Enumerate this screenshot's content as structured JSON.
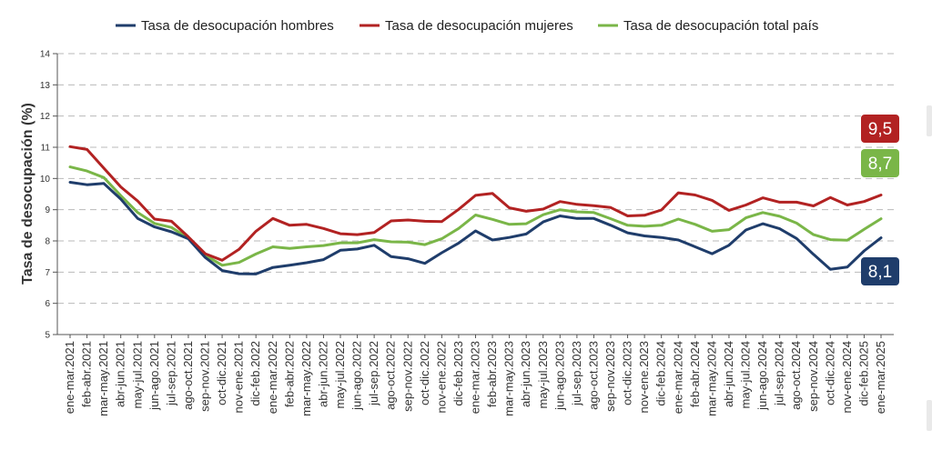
{
  "colors": {
    "hombres": "#1f3d6b",
    "mujeres": "#b22222",
    "total": "#7ab648",
    "grid": "#b9b9b9"
  },
  "chart_data": {
    "type": "line",
    "ylabel": "Tasa de desocupación (%)",
    "ylim": [
      5,
      14
    ],
    "yticks": [
      5,
      6,
      7,
      8,
      9,
      10,
      11,
      12,
      13,
      14
    ],
    "grid": "horizontal-dashed",
    "legend_position": "top",
    "categories": [
      "ene-mar.2021",
      "feb-abr.2021",
      "mar-may.2021",
      "abr-jun.2021",
      "may-jul.2021",
      "jun-ago.2021",
      "jul-sep.2021",
      "ago-oct.2021",
      "sep-nov.2021",
      "oct-dic.2021",
      "nov-ene.2021",
      "dic-feb.2022",
      "ene-mar.2022",
      "feb-abr.2022",
      "mar-may.2022",
      "abr-jun.2022",
      "may-jul.2022",
      "jun-ago.2022",
      "jul-sep.2022",
      "ago-oct.2022",
      "sep-nov.2022",
      "oct-dic.2022",
      "nov-ene.2022",
      "dic-feb.2023",
      "ene-mar.2023",
      "feb-abr.2023",
      "mar-may.2023",
      "abr-jun.2023",
      "may-jul.2023",
      "jun-ago.2023",
      "jul-sep.2023",
      "ago-oct.2023",
      "sep-nov.2023",
      "oct-dic.2023",
      "nov-ene.2023",
      "dic-feb.2024",
      "ene-mar.2024",
      "feb-abr.2024",
      "mar-may.2024",
      "abr-jun.2024",
      "may-jul.2024",
      "jun-ago.2024",
      "jul-sep.2024",
      "ago-oct.2024",
      "sep-nov.2024",
      "oct-dic.2024",
      "nov-ene.2024",
      "dic-feb.2025",
      "ene-mar.2025"
    ],
    "series": [
      {
        "key": "hombres",
        "name": "Tasa de desocupación hombres",
        "values": [
          9.88,
          9.8,
          9.84,
          9.34,
          8.72,
          8.45,
          8.29,
          8.07,
          7.47,
          7.05,
          6.95,
          6.94,
          7.15,
          7.22,
          7.3,
          7.4,
          7.7,
          7.74,
          7.86,
          7.5,
          7.43,
          7.28,
          7.62,
          7.93,
          8.32,
          8.03,
          8.11,
          8.22,
          8.61,
          8.8,
          8.72,
          8.72,
          8.5,
          8.26,
          8.16,
          8.11,
          8.03,
          7.81,
          7.59,
          7.86,
          8.35,
          8.55,
          8.39,
          8.08,
          7.57,
          7.09,
          7.16,
          7.68,
          8.1
        ],
        "end_label": "8,1"
      },
      {
        "key": "mujeres",
        "name": "Tasa de desocupación mujeres",
        "values": [
          11.02,
          10.93,
          10.33,
          9.73,
          9.28,
          8.7,
          8.63,
          8.13,
          7.59,
          7.38,
          7.73,
          8.31,
          8.72,
          8.5,
          8.53,
          8.4,
          8.23,
          8.2,
          8.27,
          8.64,
          8.67,
          8.63,
          8.62,
          9.01,
          9.46,
          9.52,
          9.06,
          8.95,
          9.02,
          9.26,
          9.17,
          9.13,
          9.07,
          8.8,
          8.82,
          8.99,
          9.54,
          9.47,
          9.3,
          8.98,
          9.15,
          9.38,
          9.24,
          9.24,
          9.12,
          9.39,
          9.15,
          9.26,
          9.47
        ],
        "end_label": "9,5"
      },
      {
        "key": "total",
        "name": "Tasa de desocupación total país",
        "values": [
          10.37,
          10.24,
          10.03,
          9.45,
          8.91,
          8.56,
          8.43,
          8.09,
          7.54,
          7.22,
          7.31,
          7.58,
          7.81,
          7.76,
          7.81,
          7.85,
          7.94,
          7.94,
          8.04,
          7.97,
          7.96,
          7.88,
          8.07,
          8.4,
          8.83,
          8.69,
          8.53,
          8.55,
          8.84,
          9.0,
          8.93,
          8.91,
          8.71,
          8.5,
          8.47,
          8.5,
          8.7,
          8.53,
          8.31,
          8.36,
          8.74,
          8.91,
          8.79,
          8.57,
          8.2,
          8.04,
          8.02,
          8.37,
          8.71
        ],
        "end_label": "8,7"
      }
    ]
  }
}
